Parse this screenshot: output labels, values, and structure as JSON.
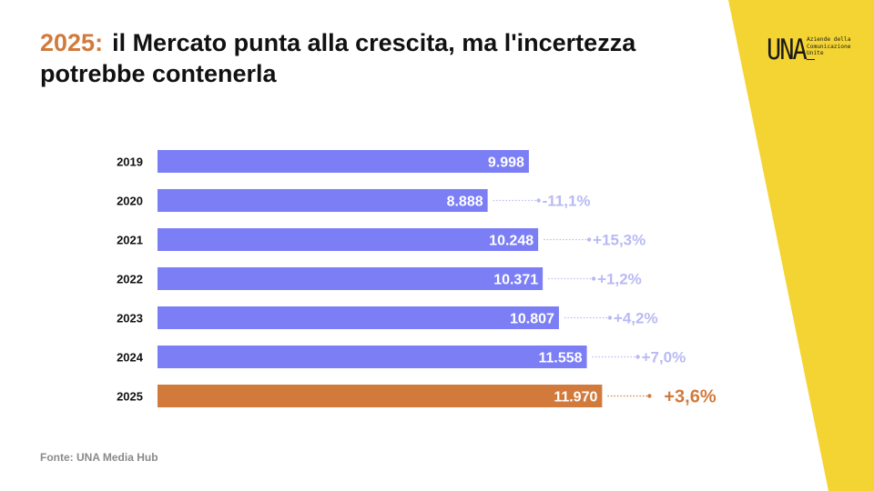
{
  "header": {
    "title_year": "2025:",
    "title_text": "il Mercato punta alla crescita, ma l'incertezza potrebbe contenerla"
  },
  "logo": {
    "mark": "UNA",
    "lines": [
      "Aziende della",
      "Comunicazione",
      "Unite"
    ]
  },
  "source": "Fonte: UNA Media Hub",
  "colors": {
    "bar": "#7b7ef5",
    "highlight": "#d27a3c",
    "change_label": "#b9baf4",
    "yellow": "#f4d432"
  },
  "chart_data": {
    "type": "bar",
    "orientation": "horizontal",
    "categories": [
      "2019",
      "2020",
      "2021",
      "2022",
      "2023",
      "2024",
      "2025"
    ],
    "values": [
      9998,
      8888,
      10248,
      10371,
      10807,
      11558,
      11970
    ],
    "value_labels": [
      "9.998",
      "8.888",
      "10.248",
      "10.371",
      "10.807",
      "11.558",
      "11.970"
    ],
    "change_labels": [
      "",
      "-11,1%",
      "+15,3%",
      "+1,2%",
      "+4,2%",
      "+7,0%",
      "+3,6%"
    ],
    "highlight_category": "2025",
    "title": "",
    "xlabel": "",
    "ylabel": ""
  }
}
